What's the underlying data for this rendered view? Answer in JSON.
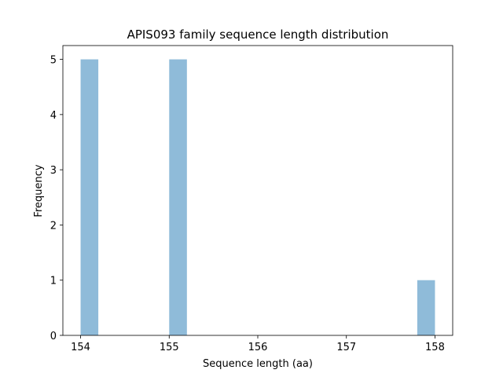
{
  "chart_data": {
    "type": "histogram",
    "title": "APIS093 family sequence length distribution",
    "x_label": "Sequence length (aa)",
    "y_label": "Frequency",
    "bins": [
      154,
      154.2,
      154.4,
      154.6,
      154.8,
      155,
      155.2,
      155.4,
      155.6,
      155.8,
      156,
      156.2,
      156.4,
      156.6,
      156.8,
      157,
      157.2,
      157.4,
      157.6,
      157.8,
      158
    ],
    "values": [
      5,
      0,
      0,
      0,
      0,
      5,
      0,
      0,
      0,
      0,
      0,
      0,
      0,
      0,
      0,
      0,
      0,
      0,
      0,
      1
    ],
    "color": "#8fbbd9",
    "xlim": [
      153.8,
      158.2
    ],
    "xticks": [
      154,
      155,
      156,
      157,
      158
    ],
    "ylim": [
      0,
      5.25
    ],
    "yticks": [
      0,
      1,
      2,
      3,
      4,
      5
    ],
    "grid": false
  }
}
